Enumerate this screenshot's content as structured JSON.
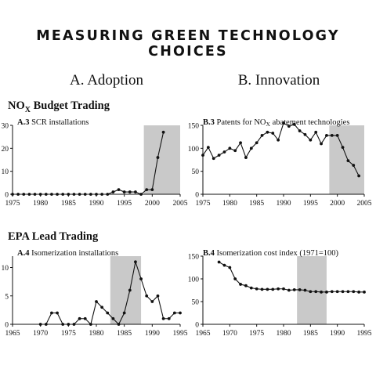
{
  "title": "MEASURING GREEN TECHNOLOGY CHOICES",
  "columns": {
    "left": "A. Adoption",
    "right": "B. Innovation"
  },
  "sections": {
    "top": {
      "main": "NO",
      "sub": "X",
      "tail": " Budget Trading"
    },
    "bottom": {
      "main": "EPA Lead Trading"
    }
  },
  "chart_data": [
    {
      "id": "A3",
      "type": "line",
      "label_prefix": "A.3",
      "title": "SCR installations",
      "xlim": [
        1975,
        2005
      ],
      "ylim": [
        0,
        30
      ],
      "xticks": [
        1975,
        1980,
        1985,
        1990,
        1995,
        2000,
        2005
      ],
      "yticks": [
        0,
        10,
        20,
        30
      ],
      "shaded": [
        1998.5,
        2005
      ],
      "x": [
        1975,
        1976,
        1977,
        1978,
        1979,
        1980,
        1981,
        1982,
        1983,
        1984,
        1985,
        1986,
        1987,
        1988,
        1989,
        1990,
        1991,
        1992,
        1993,
        1994,
        1995,
        1996,
        1997,
        1998,
        1999,
        2000,
        2001,
        2002
      ],
      "y": [
        0,
        0,
        0,
        0,
        0,
        0,
        0,
        0,
        0,
        0,
        0,
        0,
        0,
        0,
        0,
        0,
        0,
        0,
        1,
        2,
        1,
        1,
        1,
        0,
        2,
        2,
        16,
        27
      ]
    },
    {
      "id": "B3",
      "type": "line",
      "label_prefix": "B.3",
      "title_main": "Patents for NO",
      "title_sub": "X",
      "title_tail": " abatement technologies",
      "xlim": [
        1975,
        2005
      ],
      "ylim": [
        0,
        150
      ],
      "xticks": [
        1975,
        1980,
        1985,
        1990,
        1995,
        2000,
        2005
      ],
      "yticks": [
        0,
        50,
        100,
        150
      ],
      "shaded": [
        1998.5,
        2005
      ],
      "x": [
        1975,
        1976,
        1977,
        1978,
        1979,
        1980,
        1981,
        1982,
        1983,
        1984,
        1985,
        1986,
        1987,
        1988,
        1989,
        1990,
        1991,
        1992,
        1993,
        1994,
        1995,
        1996,
        1997,
        1998,
        1999,
        2000,
        2001,
        2002,
        2003,
        2004
      ],
      "y": [
        85,
        102,
        78,
        85,
        92,
        100,
        95,
        112,
        80,
        100,
        112,
        128,
        135,
        133,
        118,
        155,
        148,
        152,
        138,
        130,
        118,
        135,
        110,
        128,
        128,
        128,
        102,
        73,
        63,
        40
      ]
    },
    {
      "id": "A4",
      "type": "line",
      "label_prefix": "A.4",
      "title": "Isomerization installations",
      "xlim": [
        1965,
        1995
      ],
      "ylim": [
        0,
        12
      ],
      "xticks": [
        1965,
        1970,
        1975,
        1980,
        1985,
        1990,
        1995
      ],
      "yticks": [
        0,
        5,
        10
      ],
      "shaded": [
        1982.5,
        1988
      ],
      "x": [
        1970,
        1971,
        1972,
        1973,
        1974,
        1975,
        1976,
        1977,
        1978,
        1979,
        1980,
        1981,
        1982,
        1983,
        1984,
        1985,
        1986,
        1987,
        1988,
        1989,
        1990,
        1991,
        1992,
        1993,
        1994,
        1995
      ],
      "y": [
        0,
        0,
        2,
        2,
        0,
        0,
        0,
        1,
        1,
        0,
        4,
        3,
        2,
        1,
        0,
        2,
        6,
        11,
        8,
        5,
        4,
        5,
        1,
        1,
        2,
        2
      ]
    },
    {
      "id": "B4",
      "type": "line",
      "label_prefix": "B.4",
      "title": "Isomerization cost index (1971=100)",
      "xlim": [
        1965,
        1995
      ],
      "ylim": [
        0,
        150
      ],
      "xticks": [
        1965,
        1970,
        1975,
        1980,
        1985,
        1990,
        1995
      ],
      "yticks": [
        0,
        50,
        100,
        150
      ],
      "shaded": [
        1982.5,
        1988
      ],
      "x": [
        1968,
        1969,
        1970,
        1971,
        1972,
        1973,
        1974,
        1975,
        1976,
        1977,
        1978,
        1979,
        1980,
        1981,
        1982,
        1983,
        1984,
        1985,
        1986,
        1987,
        1988,
        1989,
        1990,
        1991,
        1992,
        1993,
        1994,
        1995
      ],
      "y": [
        137,
        130,
        125,
        100,
        88,
        85,
        80,
        78,
        77,
        77,
        77,
        78,
        78,
        75,
        76,
        76,
        75,
        72,
        72,
        71,
        71,
        72,
        72,
        72,
        72,
        72,
        71,
        71
      ]
    }
  ]
}
